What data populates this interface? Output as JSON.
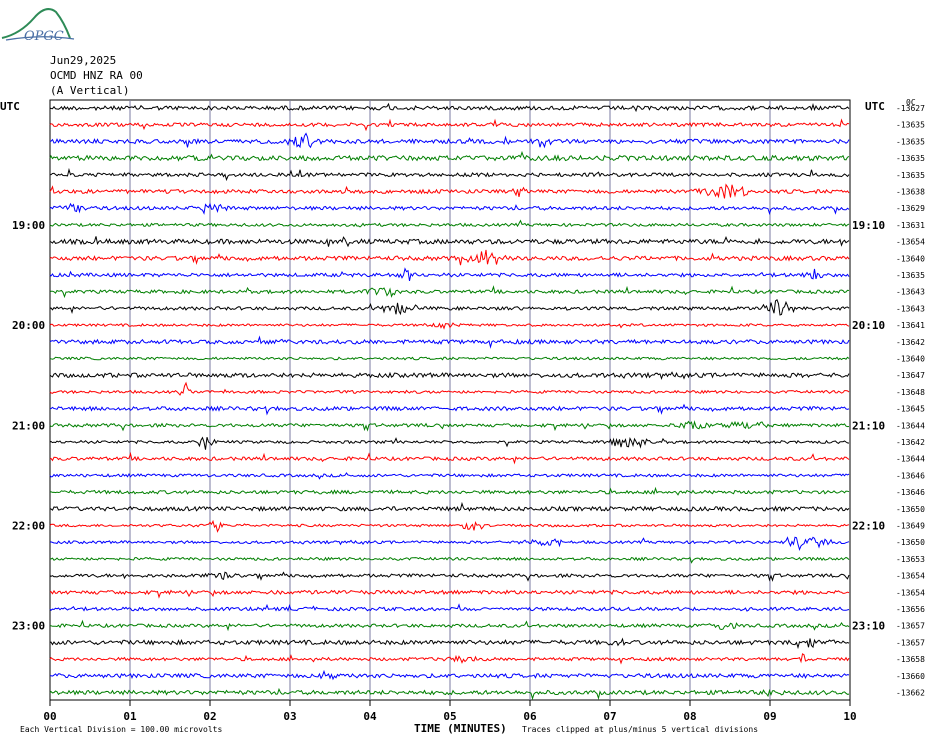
{
  "header": {
    "logo_text": "OPGC",
    "date": "Jun29,2025",
    "station": "OCMD HNZ RA 00",
    "component": "(A Vertical)"
  },
  "utc_label": "UTC",
  "corner_value": "0C",
  "left_hour_labels": [
    {
      "text": "19:00",
      "row": 7
    },
    {
      "text": "20:00",
      "row": 13
    },
    {
      "text": "21:00",
      "row": 19
    },
    {
      "text": "22:00",
      "row": 25
    },
    {
      "text": "23:00",
      "row": 31
    }
  ],
  "right_hour_labels": [
    {
      "text": "19:10",
      "row": 7
    },
    {
      "text": "20:10",
      "row": 13
    },
    {
      "text": "21:10",
      "row": 19
    },
    {
      "text": "22:10",
      "row": 25
    },
    {
      "text": "23:10",
      "row": 31
    }
  ],
  "footer": {
    "division": "Each Vertical Division =  100.00 microvolts",
    "clipping": "Traces clipped at plus/minus 5 vertical divisions",
    "xlabel": "TIME (MINUTES)"
  },
  "chart_data": {
    "type": "line",
    "x_ticks": [
      "00",
      "01",
      "02",
      "03",
      "04",
      "05",
      "06",
      "07",
      "08",
      "09",
      "10"
    ],
    "xlim": [
      0,
      10
    ],
    "colors": [
      "#000000",
      "#ff0000",
      "#0000ff",
      "#007f00"
    ],
    "right_values": [
      -13627,
      -13635,
      -13635,
      -13635,
      -13635,
      -13638,
      -13629,
      -13631,
      -13654,
      -13640,
      -13635,
      -13643,
      -13643,
      -13641,
      -13642,
      -13640,
      -13647,
      -13648,
      -13645,
      -13644,
      -13642,
      -13644,
      -13646,
      -13646,
      -13650,
      -13649,
      -13650,
      -13653,
      -13654,
      -13654,
      -13656,
      -13657,
      -13657,
      -13658,
      -13660,
      -13662
    ],
    "trace_count": 36
  }
}
